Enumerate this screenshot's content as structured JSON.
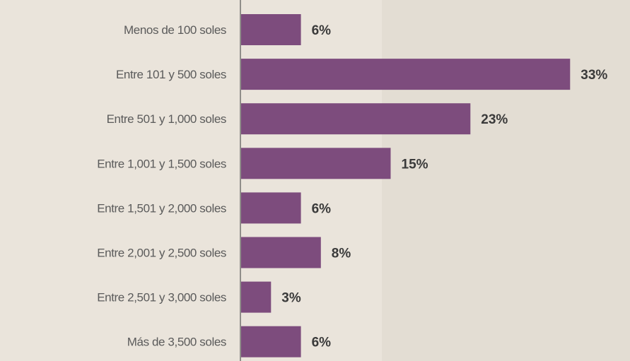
{
  "chart_data": {
    "type": "bar",
    "orientation": "horizontal",
    "categories": [
      "Menos de 100 soles",
      "Entre 101 y 500 soles",
      "Entre 501 y 1,000 soles",
      "Entre 1,001 y 1,500 soles",
      "Entre 1,501 y 2,000 soles",
      "Entre 2,001 y 2,500 soles",
      "Entre 2,501 y 3,000 soles",
      "Más de 3,500 soles"
    ],
    "values": [
      6,
      33,
      23,
      15,
      6,
      8,
      3,
      6
    ],
    "value_labels": [
      "6%",
      "33%",
      "23%",
      "15%",
      "6%",
      "8%",
      "3%",
      "6%"
    ],
    "unit": "%",
    "xlim": [
      0,
      35
    ],
    "grid": false,
    "colors": {
      "bar": "#7d4c7d",
      "background": "#eae4db",
      "category_text": "#5b5b5b",
      "value_text": "#3a3a3a"
    }
  }
}
